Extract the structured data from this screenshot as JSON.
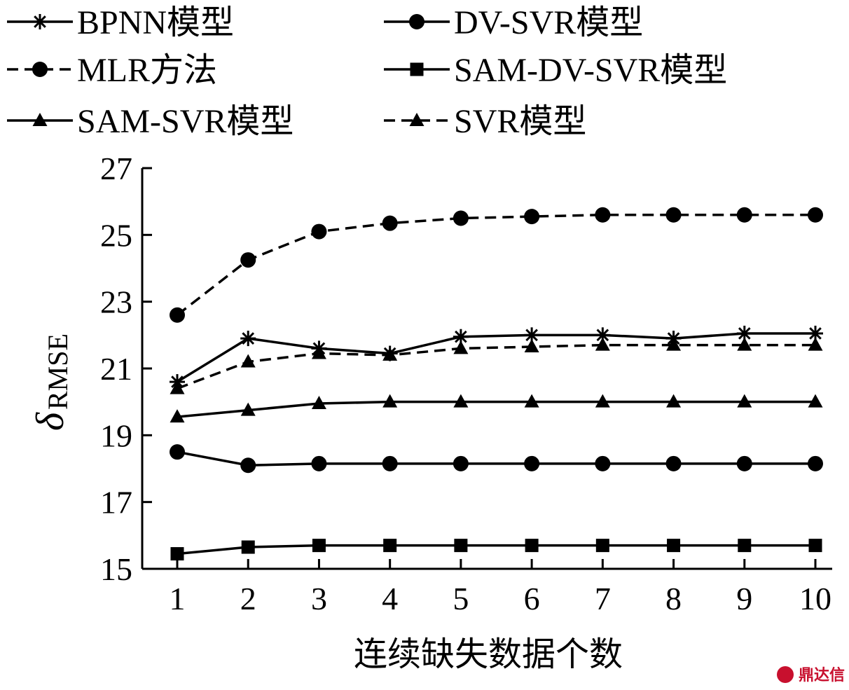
{
  "chart_data": {
    "type": "line",
    "x": [
      1,
      2,
      3,
      4,
      5,
      6,
      7,
      8,
      9,
      10
    ],
    "xlabel": "连续缺失数据个数",
    "ylabel_main": "δ",
    "ylabel_sub": "RMSE",
    "ylim": [
      15,
      27
    ],
    "yticks": [
      15,
      17,
      19,
      21,
      23,
      25,
      27
    ],
    "xticks": [
      1,
      2,
      3,
      4,
      5,
      6,
      7,
      8,
      9,
      10
    ],
    "grid": false,
    "legend_position": "top",
    "series": [
      {
        "name": "BPNN模型",
        "marker": "star",
        "dash": "solid",
        "values": [
          20.6,
          21.9,
          21.6,
          21.45,
          21.95,
          22.0,
          22.0,
          21.9,
          22.05,
          22.05
        ]
      },
      {
        "name": "DV-SVR模型",
        "marker": "circle",
        "dash": "solid",
        "values": [
          18.5,
          18.1,
          18.15,
          18.15,
          18.15,
          18.15,
          18.15,
          18.15,
          18.15,
          18.15
        ]
      },
      {
        "name": "MLR方法",
        "marker": "circle",
        "dash": "dashed",
        "values": [
          22.6,
          24.25,
          25.1,
          25.35,
          25.5,
          25.55,
          25.6,
          25.6,
          25.6,
          25.6
        ]
      },
      {
        "name": "SAM-DV-SVR模型",
        "marker": "square",
        "dash": "solid",
        "values": [
          15.45,
          15.65,
          15.7,
          15.7,
          15.7,
          15.7,
          15.7,
          15.7,
          15.7,
          15.7
        ]
      },
      {
        "name": "SAM-SVR模型",
        "marker": "triangle",
        "dash": "solid",
        "values": [
          19.55,
          19.75,
          19.95,
          20.0,
          20.0,
          20.0,
          20.0,
          20.0,
          20.0,
          20.0
        ]
      },
      {
        "name": "SVR模型",
        "marker": "triangle",
        "dash": "dashed",
        "values": [
          20.4,
          21.2,
          21.45,
          21.4,
          21.6,
          21.65,
          21.7,
          21.7,
          21.7,
          21.7
        ]
      }
    ]
  },
  "watermark": "鼎达信",
  "colors": {
    "line": "#000000",
    "watermark": "#c8102e"
  }
}
